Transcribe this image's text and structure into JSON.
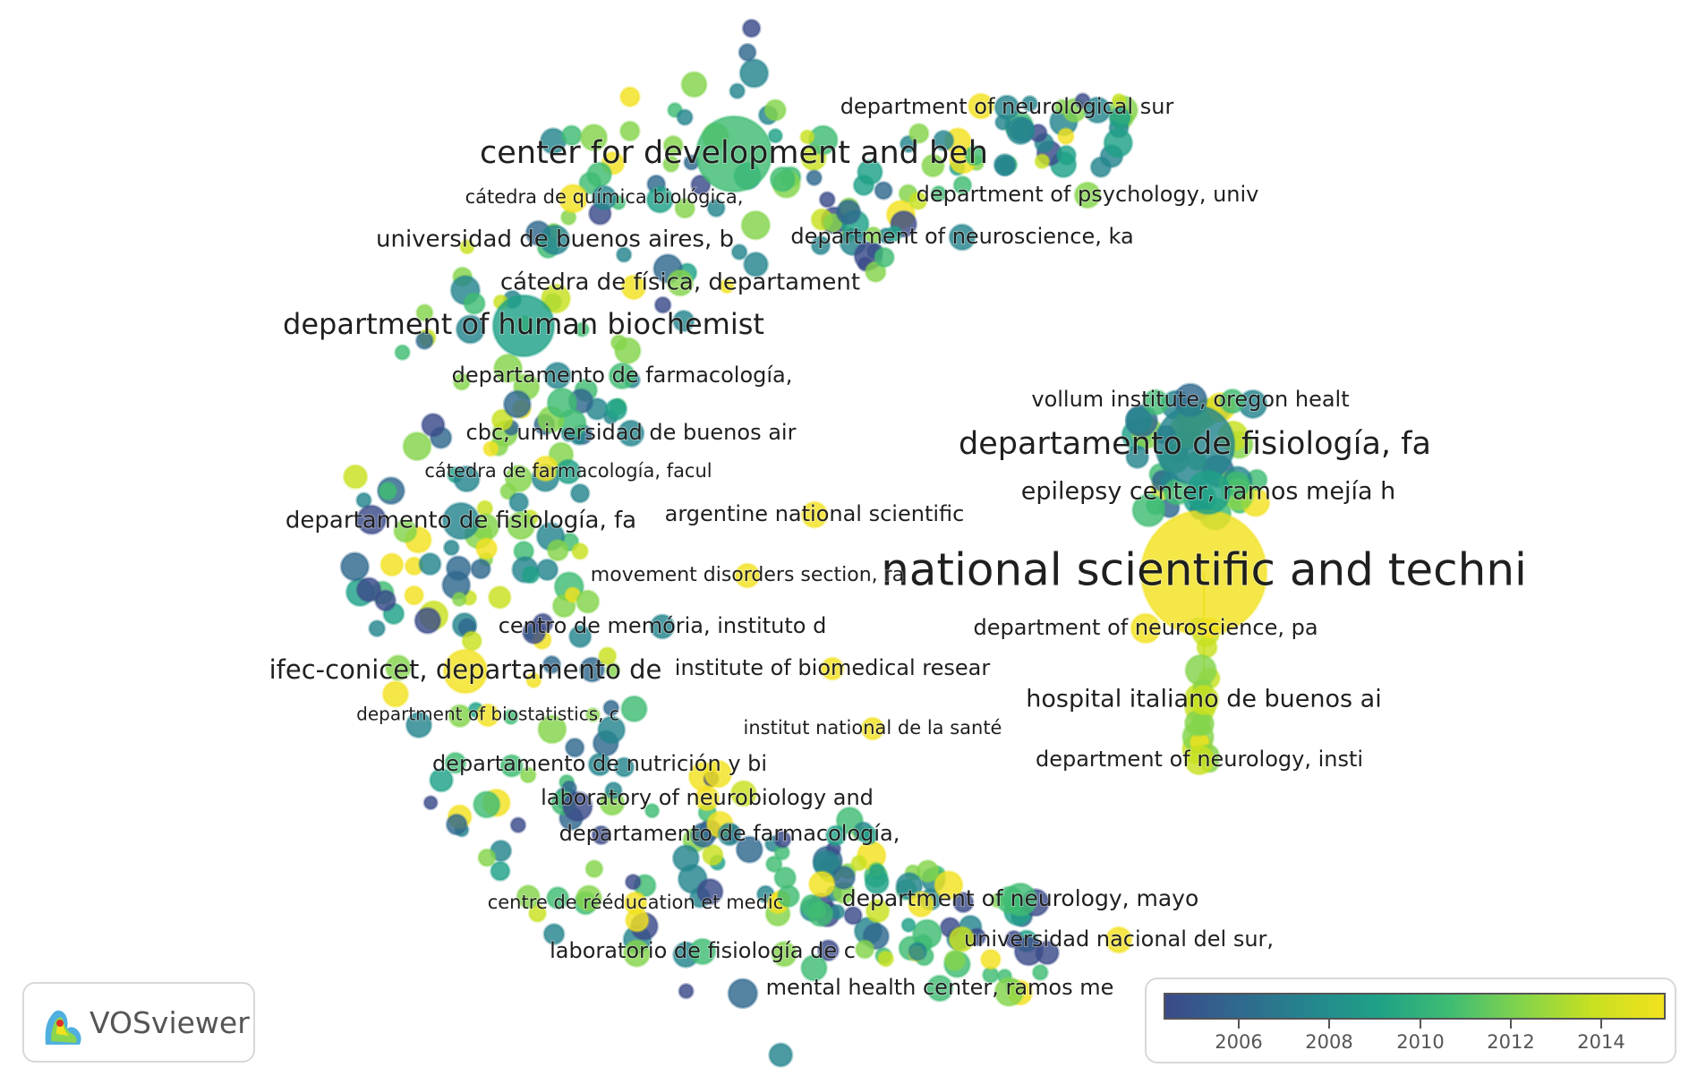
{
  "app": "VOSviewer",
  "legend": {
    "ticks": [
      "2006",
      "2008",
      "2010",
      "2012",
      "2014"
    ],
    "colors": [
      "#3b4a8a",
      "#30688e",
      "#25858e",
      "#1fa187",
      "#3fbc73",
      "#84d44b",
      "#c8e020",
      "#f2e21e"
    ]
  },
  "nodes": [
    {
      "label": "national scientific and techni",
      "year": 2015
    },
    {
      "label": "department of neurological sur",
      "year": 2007
    },
    {
      "label": "center for development and beh",
      "year": 2010
    },
    {
      "label": "cátedra de química biológica,",
      "year": 2008
    },
    {
      "label": "department of psychology, univ",
      "year": 2013
    },
    {
      "label": "universidad de buenos aires, b",
      "year": 2008
    },
    {
      "label": "department of neuroscience, ka",
      "year": 2008
    },
    {
      "label": "cátedra de física, departament",
      "year": 2012
    },
    {
      "label": "department of human biochemist",
      "year": 2009
    },
    {
      "label": "departamento de farmacología,",
      "year": 2011
    },
    {
      "label": "vollum institute, oregon healt",
      "year": 2006
    },
    {
      "label": "cbc, universidad de buenos air",
      "year": 2008
    },
    {
      "label": "departamento de fisiología, fa",
      "year": 2007
    },
    {
      "label": "cátedra de farmacología, facul",
      "year": 2009
    },
    {
      "label": "epilepsy center, ramos mejía h",
      "year": 2009
    },
    {
      "label": "departamento de fisiología, fa",
      "year": 2008
    },
    {
      "label": "argentine national scientific",
      "year": 2015
    },
    {
      "label": "movement disorders section, ra",
      "year": 2015
    },
    {
      "label": "department of neuroscience, pa",
      "year": 2015
    },
    {
      "label": "centro de memória, instituto d",
      "year": 2007
    },
    {
      "label": "ifec-conicet, departamento de",
      "year": 2015
    },
    {
      "label": "institute of biomedical resear",
      "year": 2015
    },
    {
      "label": "hospital italiano de buenos ai",
      "year": 2014
    },
    {
      "label": "department of biostatistics, c",
      "year": 2015
    },
    {
      "label": "institut national de la santé",
      "year": 2015
    },
    {
      "label": "departamento de nutrición y bi",
      "year": 2008
    },
    {
      "label": "department of neurology, insti",
      "year": 2014
    },
    {
      "label": "laboratory of neurobiology and",
      "year": 2015
    },
    {
      "label": "departamento de farmacología,",
      "year": 2007
    },
    {
      "label": "centre de rééducation et medic",
      "year": 2015
    },
    {
      "label": "department of neurology, mayo",
      "year": 2010
    },
    {
      "label": "universidad nacional del sur,",
      "year": 2015
    },
    {
      "label": "laboratorio de fisiología de c",
      "year": 2011
    },
    {
      "label": "mental health center, ramos me",
      "year": 2010
    }
  ]
}
